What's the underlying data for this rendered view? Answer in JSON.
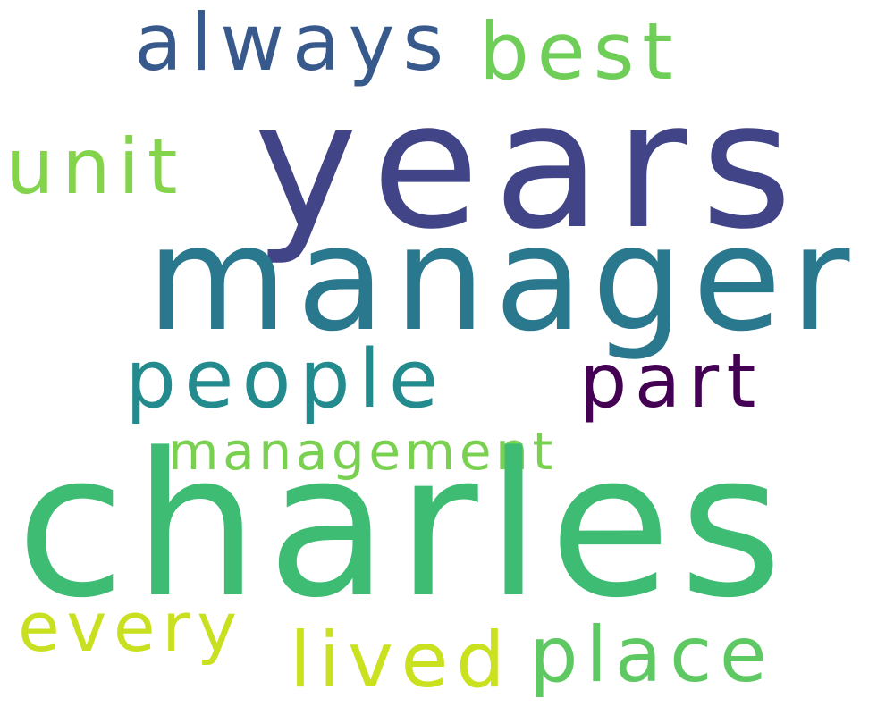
{
  "words": {
    "years": {
      "text": "years",
      "color": "#414487"
    },
    "manager": {
      "text": "manager",
      "color": "#2a788e"
    },
    "charles": {
      "text": "charles",
      "color": "#3fbc73"
    },
    "always": {
      "text": "always",
      "color": "#38598c"
    },
    "best": {
      "text": "best",
      "color": "#6ece58"
    },
    "unit": {
      "text": "unit",
      "color": "#84d44b"
    },
    "people": {
      "text": "people",
      "color": "#238a8d"
    },
    "part": {
      "text": "part",
      "color": "#440154"
    },
    "management": {
      "text": "management",
      "color": "#7ad151"
    },
    "every": {
      "text": "every",
      "color": "#c8e020"
    },
    "lived": {
      "text": "lived",
      "color": "#cae11f"
    },
    "place": {
      "text": "place",
      "color": "#5ec962"
    }
  }
}
